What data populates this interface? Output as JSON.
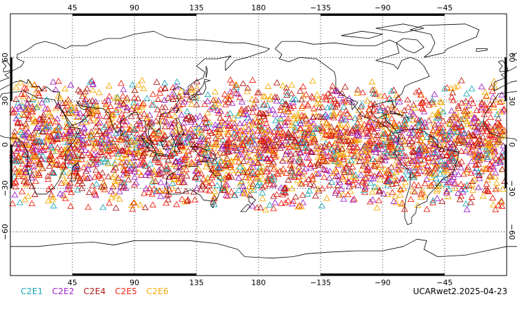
{
  "map": {
    "projection": "equirectangular",
    "lon_range": [
      0,
      360
    ],
    "lat_range": [
      -90,
      90
    ],
    "lon_ticks": [
      {
        "lon": 45,
        "label": "45"
      },
      {
        "lon": 90,
        "label": "90"
      },
      {
        "lon": 135,
        "label": "135"
      },
      {
        "lon": 180,
        "label": "180"
      },
      {
        "lon": 225,
        "label": "−135"
      },
      {
        "lon": 270,
        "label": "−90"
      },
      {
        "lon": 315,
        "label": "−45"
      }
    ],
    "lat_ticks": [
      {
        "lat": 60,
        "label": "60"
      },
      {
        "lat": 30,
        "label": "30"
      },
      {
        "lat": 0,
        "label": "0"
      },
      {
        "lat": -30,
        "label": "−30"
      },
      {
        "lat": -60,
        "label": "−60"
      }
    ],
    "grid": "dotted",
    "observation_band_lat": [
      -45,
      45
    ],
    "marker": "open-triangle"
  },
  "legend": {
    "items": [
      {
        "label": "C2E1",
        "color": "#19a7b5"
      },
      {
        "label": "C2E2",
        "color": "#a020c8"
      },
      {
        "label": "C2E4",
        "color": "#b01818"
      },
      {
        "label": "C2E5",
        "color": "#ee2010"
      },
      {
        "label": "C2E6",
        "color": "#f5a800"
      }
    ]
  },
  "credit": "UCARwet2.2025-04-23"
}
